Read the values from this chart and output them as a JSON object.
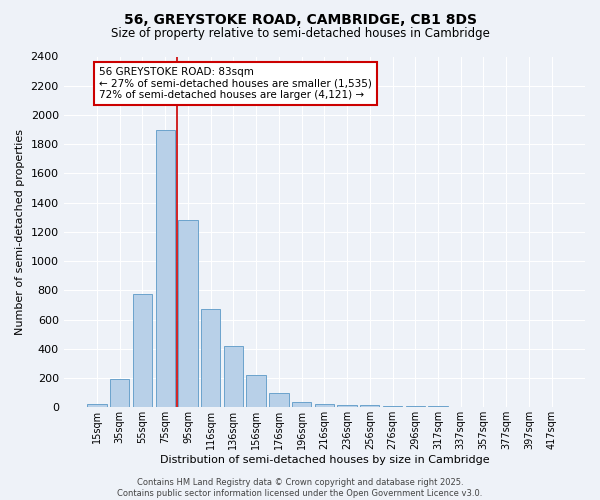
{
  "title": "56, GREYSTOKE ROAD, CAMBRIDGE, CB1 8DS",
  "subtitle": "Size of property relative to semi-detached houses in Cambridge",
  "xlabel": "Distribution of semi-detached houses by size in Cambridge",
  "ylabel": "Number of semi-detached properties",
  "categories": [
    "15sqm",
    "35sqm",
    "55sqm",
    "75sqm",
    "95sqm",
    "116sqm",
    "136sqm",
    "156sqm",
    "176sqm",
    "196sqm",
    "216sqm",
    "236sqm",
    "256sqm",
    "276sqm",
    "296sqm",
    "317sqm",
    "337sqm",
    "357sqm",
    "377sqm",
    "397sqm",
    "417sqm"
  ],
  "values": [
    25,
    195,
    775,
    1900,
    1280,
    670,
    420,
    220,
    100,
    35,
    25,
    15,
    15,
    10,
    10,
    10,
    5,
    5,
    3,
    2,
    1
  ],
  "bar_color": "#b8d0e8",
  "bar_edge_color": "#6ba3cc",
  "vline_x_idx": 3.5,
  "vline_color": "#cc0000",
  "annotation_text": "56 GREYSTOKE ROAD: 83sqm\n← 27% of semi-detached houses are smaller (1,535)\n72% of semi-detached houses are larger (4,121) →",
  "annotation_box_facecolor": "#ffffff",
  "annotation_box_edgecolor": "#cc0000",
  "ylim_max": 2400,
  "ytick_interval": 200,
  "background_color": "#eef2f8",
  "grid_color": "#ffffff",
  "footer_line1": "Contains HM Land Registry data © Crown copyright and database right 2025.",
  "footer_line2": "Contains public sector information licensed under the Open Government Licence v3.0."
}
